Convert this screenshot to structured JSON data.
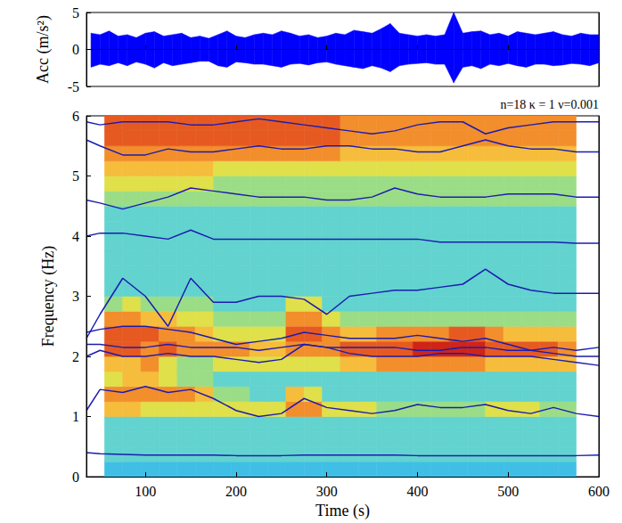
{
  "chart_data": [
    {
      "type": "band",
      "ylabel": "Acc (m/s²)",
      "color": "#0000ff",
      "xlim": [
        35,
        600
      ],
      "xticks": [
        100,
        200,
        300,
        400,
        500,
        600
      ],
      "ylim": [
        -5,
        5
      ],
      "yticks": [
        -5,
        0,
        5
      ],
      "tick_labels": "y",
      "x": [
        40,
        50,
        60,
        70,
        80,
        90,
        100,
        110,
        120,
        130,
        140,
        150,
        160,
        170,
        180,
        190,
        200,
        210,
        220,
        230,
        240,
        250,
        260,
        270,
        280,
        290,
        300,
        310,
        320,
        330,
        340,
        350,
        360,
        370,
        380,
        390,
        400,
        410,
        420,
        430,
        440,
        450,
        460,
        470,
        480,
        490,
        500,
        510,
        520,
        530,
        540,
        550,
        560,
        570,
        580,
        590,
        600
      ],
      "upper": [
        2.2,
        2.0,
        2.5,
        1.8,
        2.0,
        1.6,
        2.2,
        2.4,
        1.8,
        2.0,
        2.2,
        1.6,
        1.8,
        1.5,
        2.0,
        2.5,
        1.8,
        1.6,
        2.0,
        2.2,
        2.0,
        2.5,
        2.2,
        1.8,
        2.0,
        1.6,
        1.8,
        2.2,
        2.0,
        2.6,
        2.4,
        2.2,
        2.8,
        3.5,
        2.2,
        2.0,
        1.8,
        2.0,
        1.8,
        2.0,
        5.0,
        2.2,
        2.4,
        2.5,
        2.0,
        2.2,
        1.8,
        2.4,
        2.2,
        2.0,
        2.2,
        2.4,
        2.0,
        1.8,
        2.2,
        2.0,
        2.0
      ],
      "lower": [
        -2.4,
        -2.0,
        -2.2,
        -1.8,
        -2.2,
        -1.7,
        -2.0,
        -2.5,
        -1.8,
        -2.2,
        -2.0,
        -1.8,
        -1.6,
        -1.6,
        -2.2,
        -2.4,
        -1.7,
        -1.8,
        -2.0,
        -2.0,
        -2.2,
        -2.4,
        -2.0,
        -1.9,
        -2.1,
        -1.8,
        -1.7,
        -2.0,
        -2.2,
        -2.4,
        -2.6,
        -2.2,
        -2.5,
        -3.0,
        -2.2,
        -2.0,
        -1.9,
        -1.8,
        -2.0,
        -2.0,
        -4.5,
        -2.4,
        -2.2,
        -2.6,
        -2.0,
        -2.2,
        -1.9,
        -2.2,
        -2.4,
        -2.0,
        -2.0,
        -2.2,
        -2.1,
        -1.9,
        -2.0,
        -2.2,
        -1.8
      ]
    },
    {
      "type": "heatmap",
      "annotation": "n=18 κ = 1 ν=0.001",
      "xlabel": "Time (s)",
      "ylabel": "Frequency (Hz)",
      "xlim": [
        35,
        600
      ],
      "xticks": [
        100,
        200,
        300,
        400,
        500,
        600
      ],
      "ylim": [
        0,
        6
      ],
      "yticks": [
        0,
        1,
        2,
        3,
        4,
        5,
        6
      ],
      "time_bins": [
        55,
        75,
        95,
        115,
        135,
        155,
        175,
        195,
        215,
        235,
        255,
        275,
        295,
        315,
        335,
        355,
        375,
        395,
        415,
        435,
        455,
        475,
        495,
        515,
        535,
        555,
        575
      ],
      "frequency_bins": [
        0,
        0.25,
        0.5,
        0.75,
        1,
        1.25,
        1.5,
        1.75,
        2,
        2.25,
        2.5,
        2.75,
        3,
        3.25,
        3.5,
        3.75,
        4,
        4.25,
        4.5,
        4.75,
        5,
        5.25,
        5.5,
        5.75,
        6
      ],
      "cells": [
        [
          2,
          2,
          2,
          2,
          2,
          2,
          2,
          2,
          2,
          2,
          2,
          2,
          2,
          2,
          2,
          2,
          2,
          2,
          2,
          2,
          2,
          2,
          2,
          2,
          2,
          2
        ],
        [
          3,
          3,
          3,
          3,
          3,
          3,
          3,
          3,
          3,
          3,
          3,
          3,
          3,
          3,
          3,
          3,
          3,
          3,
          3,
          3,
          3,
          3,
          3,
          3,
          3,
          3
        ],
        [
          3,
          3,
          3,
          3,
          3,
          3,
          3,
          3,
          3,
          3,
          3,
          3,
          3,
          3,
          3,
          3,
          3,
          3,
          3,
          3,
          3,
          3,
          3,
          3,
          3,
          3
        ],
        [
          3,
          3,
          3,
          3,
          3,
          3,
          3,
          3,
          3,
          3,
          3,
          3,
          3,
          3,
          3,
          3,
          3,
          3,
          3,
          3,
          3,
          3,
          3,
          3,
          3,
          3
        ],
        [
          6,
          6,
          5,
          5,
          5,
          5,
          5,
          5,
          5,
          5,
          7,
          7,
          5,
          5,
          5,
          4,
          4,
          4,
          4,
          4,
          4,
          5,
          5,
          5,
          4,
          4
        ],
        [
          7,
          7,
          7,
          7,
          7,
          6,
          4,
          4,
          3,
          3,
          6,
          5,
          3,
          3,
          3,
          3,
          3,
          3,
          3,
          3,
          3,
          3,
          3,
          3,
          3,
          3
        ],
        [
          5,
          6,
          6,
          5,
          4,
          4,
          3,
          3,
          3,
          3,
          3,
          3,
          3,
          3,
          3,
          3,
          3,
          3,
          3,
          3,
          3,
          3,
          3,
          3,
          3,
          3
        ],
        [
          6,
          6,
          7,
          5,
          4,
          4,
          5,
          5,
          5,
          5,
          5,
          5,
          5,
          6,
          6,
          7,
          7,
          7,
          7,
          7,
          7,
          6,
          6,
          6,
          6,
          6
        ],
        [
          8,
          8,
          7,
          8,
          7,
          7,
          7,
          7,
          6,
          6,
          7,
          7,
          7,
          8,
          8,
          8,
          8,
          9,
          9,
          9,
          9,
          8,
          8,
          8,
          8,
          7
        ],
        [
          8,
          8,
          8,
          7,
          7,
          6,
          5,
          5,
          5,
          5,
          8,
          8,
          7,
          6,
          6,
          7,
          7,
          7,
          7,
          8,
          8,
          7,
          6,
          6,
          6,
          6
        ],
        [
          7,
          7,
          6,
          6,
          5,
          5,
          4,
          4,
          4,
          4,
          7,
          7,
          5,
          4,
          4,
          4,
          4,
          4,
          4,
          4,
          4,
          4,
          4,
          4,
          4,
          4
        ],
        [
          4,
          5,
          4,
          4,
          4,
          4,
          3,
          3,
          3,
          3,
          5,
          5,
          3,
          3,
          3,
          3,
          3,
          3,
          3,
          3,
          3,
          3,
          3,
          3,
          3,
          3
        ],
        [
          3,
          3,
          3,
          3,
          3,
          3,
          3,
          3,
          3,
          3,
          3,
          3,
          3,
          3,
          3,
          3,
          3,
          3,
          3,
          3,
          3,
          3,
          3,
          3,
          3,
          3
        ],
        [
          3,
          3,
          3,
          3,
          3,
          3,
          3,
          3,
          3,
          3,
          3,
          3,
          3,
          3,
          3,
          3,
          3,
          3,
          3,
          3,
          3,
          3,
          3,
          3,
          3,
          3
        ],
        [
          3,
          3,
          3,
          3,
          3,
          3,
          3,
          3,
          3,
          3,
          3,
          3,
          3,
          3,
          3,
          3,
          3,
          3,
          3,
          3,
          3,
          3,
          3,
          3,
          3,
          3
        ],
        [
          3,
          3,
          3,
          3,
          3,
          3,
          3,
          3,
          3,
          3,
          3,
          3,
          3,
          3,
          3,
          3,
          3,
          3,
          3,
          3,
          3,
          3,
          3,
          3,
          3,
          3
        ],
        [
          3,
          3,
          3,
          3,
          3,
          3,
          3,
          3,
          3,
          3,
          3,
          3,
          3,
          3,
          3,
          3,
          3,
          3,
          3,
          3,
          3,
          3,
          3,
          3,
          3,
          3
        ],
        [
          3,
          3,
          3,
          3,
          3,
          3,
          3,
          3,
          3,
          3,
          3,
          3,
          3,
          3,
          3,
          3,
          3,
          3,
          3,
          3,
          3,
          3,
          3,
          3,
          3,
          3
        ],
        [
          4,
          4,
          4,
          4,
          4,
          4,
          4,
          4,
          4,
          4,
          4,
          4,
          4,
          4,
          4,
          4,
          4,
          4,
          4,
          4,
          4,
          4,
          4,
          4,
          4,
          4
        ],
        [
          5,
          5,
          5,
          5,
          5,
          5,
          4,
          4,
          4,
          4,
          4,
          4,
          4,
          4,
          4,
          4,
          4,
          4,
          4,
          4,
          4,
          4,
          4,
          4,
          4,
          4
        ],
        [
          6,
          6,
          6,
          6,
          6,
          6,
          5,
          5,
          5,
          5,
          5,
          5,
          5,
          5,
          5,
          5,
          5,
          5,
          5,
          5,
          5,
          5,
          5,
          5,
          5,
          5
        ],
        [
          7,
          7,
          7,
          7,
          7,
          7,
          7,
          7,
          7,
          7,
          7,
          7,
          7,
          6,
          6,
          6,
          6,
          6,
          6,
          6,
          6,
          6,
          6,
          6,
          6,
          6
        ],
        [
          8,
          8,
          8,
          8,
          8,
          8,
          8,
          8,
          8,
          8,
          8,
          8,
          8,
          7,
          7,
          7,
          7,
          7,
          7,
          7,
          7,
          7,
          7,
          7,
          7,
          7
        ],
        [
          8,
          8,
          8,
          8,
          8,
          8,
          8,
          8,
          8,
          8,
          8,
          8,
          8,
          7,
          7,
          7,
          7,
          7,
          7,
          7,
          7,
          7,
          7,
          7,
          7,
          7
        ]
      ],
      "x": [
        35,
        50,
        75,
        100,
        125,
        150,
        175,
        200,
        225,
        250,
        275,
        300,
        325,
        350,
        375,
        400,
        425,
        450,
        475,
        500,
        525,
        550,
        575,
        600
      ],
      "series": [
        {
          "type": "line",
          "color": "#1c1cb0",
          "values": [
            0.4,
            0.38,
            0.37,
            0.36,
            0.36,
            0.36,
            0.36,
            0.35,
            0.35,
            0.35,
            0.36,
            0.36,
            0.36,
            0.36,
            0.36,
            0.35,
            0.35,
            0.35,
            0.35,
            0.35,
            0.35,
            0.35,
            0.35,
            0.36
          ]
        },
        {
          "type": "line",
          "color": "#1c1cb0",
          "values": [
            1.1,
            1.45,
            1.4,
            1.5,
            1.4,
            1.45,
            1.3,
            1.1,
            1.0,
            1.05,
            1.3,
            1.15,
            1.1,
            1.05,
            1.1,
            1.2,
            1.15,
            1.15,
            1.2,
            1.1,
            1.05,
            1.15,
            1.05,
            1.0
          ]
        },
        {
          "type": "line",
          "color": "#1c1cb0",
          "values": [
            2.2,
            2.2,
            2.15,
            2.15,
            2.2,
            2.15,
            2.15,
            2.15,
            2.1,
            2.15,
            2.2,
            2.15,
            2.15,
            2.15,
            2.15,
            2.1,
            2.1,
            2.15,
            2.15,
            2.1,
            2.1,
            2.15,
            2.1,
            2.15
          ]
        },
        {
          "type": "line",
          "color": "#1c1cb0",
          "values": [
            2.4,
            2.45,
            2.5,
            2.5,
            2.45,
            2.4,
            2.3,
            2.2,
            2.25,
            2.3,
            2.4,
            2.35,
            2.3,
            2.3,
            2.3,
            2.35,
            2.3,
            2.25,
            2.3,
            2.2,
            2.1,
            2.05,
            2.0,
            2.0
          ]
        },
        {
          "type": "line",
          "color": "#1c1cb0",
          "values": [
            2.0,
            2.1,
            2.0,
            2.0,
            2.05,
            2.0,
            2.0,
            1.95,
            1.9,
            1.95,
            2.2,
            2.15,
            2.05,
            2.0,
            2.0,
            2.0,
            2.05,
            2.05,
            2.0,
            2.0,
            2.0,
            1.95,
            1.9,
            1.85
          ]
        },
        {
          "type": "line",
          "color": "#1c1cb0",
          "values": [
            2.3,
            2.7,
            3.3,
            3.0,
            2.5,
            3.3,
            2.9,
            2.9,
            3.0,
            3.0,
            2.95,
            2.7,
            3.0,
            3.05,
            3.1,
            3.1,
            3.15,
            3.2,
            3.45,
            3.2,
            3.1,
            3.05,
            3.05,
            3.05
          ]
        },
        {
          "type": "line",
          "color": "#1c1cb0",
          "values": [
            4.0,
            4.05,
            4.05,
            4.0,
            3.95,
            4.1,
            3.95,
            3.95,
            3.95,
            3.95,
            3.95,
            3.95,
            3.95,
            3.95,
            3.95,
            3.95,
            3.9,
            3.9,
            3.9,
            3.9,
            3.9,
            3.9,
            3.88,
            3.88
          ]
        },
        {
          "type": "line",
          "color": "#1c1cb0",
          "values": [
            4.6,
            4.55,
            4.45,
            4.55,
            4.65,
            4.8,
            4.75,
            4.7,
            4.65,
            4.65,
            4.65,
            4.6,
            4.6,
            4.65,
            4.8,
            4.7,
            4.65,
            4.65,
            4.65,
            4.7,
            4.7,
            4.7,
            4.65,
            4.65
          ]
        },
        {
          "type": "line",
          "color": "#1c1cb0",
          "values": [
            5.6,
            5.5,
            5.35,
            5.35,
            5.45,
            5.4,
            5.4,
            5.45,
            5.5,
            5.45,
            5.45,
            5.5,
            5.5,
            5.45,
            5.45,
            5.4,
            5.4,
            5.5,
            5.6,
            5.5,
            5.45,
            5.45,
            5.4,
            5.4
          ]
        },
        {
          "type": "line",
          "color": "#1c1cb0",
          "values": [
            5.9,
            5.85,
            5.9,
            5.9,
            5.9,
            5.85,
            5.85,
            5.9,
            5.95,
            5.9,
            5.85,
            5.8,
            5.75,
            5.7,
            5.75,
            5.85,
            5.9,
            5.9,
            5.7,
            5.8,
            5.85,
            5.9,
            5.9,
            5.9
          ]
        }
      ]
    }
  ]
}
